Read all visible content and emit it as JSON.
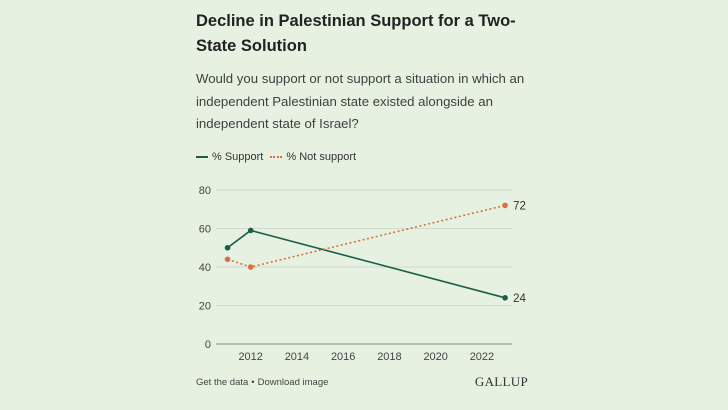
{
  "title": "Decline in Palestinian Support for a Two-State Solution",
  "subtitle": "Would you support or not support a situation in which an independent Palestinian state existed alongside an independent state of Israel?",
  "legend": {
    "support": "% Support",
    "not_support": "% Not support"
  },
  "footer": {
    "get_data": "Get the data",
    "separator": "•",
    "download": "Download image",
    "brand": "GALLUP"
  },
  "colors": {
    "support": "#1a5e48",
    "not_support": "#d9703f",
    "grid": "#cfd9cc",
    "axis_text": "#444444"
  },
  "chart_data": {
    "type": "line",
    "title": "Decline in Palestinian Support for a Two-State Solution",
    "xlabel": "",
    "ylabel": "",
    "xlim": [
      2010.5,
      2023.3
    ],
    "ylim": [
      0,
      80
    ],
    "x_ticks": [
      2012,
      2014,
      2016,
      2018,
      2020,
      2022
    ],
    "y_ticks": [
      0,
      20,
      40,
      60,
      80
    ],
    "grid": true,
    "legend_position": "top-left",
    "series": [
      {
        "name": "% Support",
        "style": "solid",
        "points": [
          {
            "x": 2011,
            "y": 50
          },
          {
            "x": 2012,
            "y": 59
          },
          {
            "x": 2023,
            "y": 24
          }
        ],
        "end_label": "24"
      },
      {
        "name": "% Not support",
        "style": "dotted",
        "points": [
          {
            "x": 2011,
            "y": 44
          },
          {
            "x": 2012,
            "y": 40
          },
          {
            "x": 2023,
            "y": 72
          }
        ],
        "end_label": "72"
      }
    ]
  }
}
